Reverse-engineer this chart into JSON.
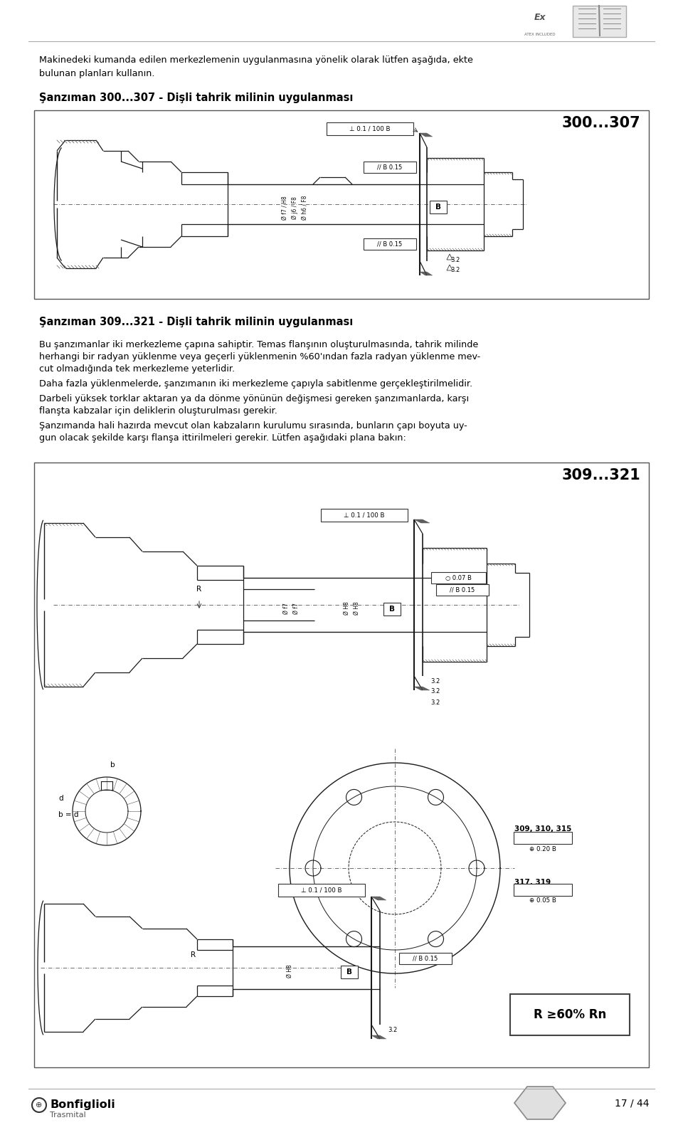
{
  "page_width": 9.6,
  "page_height": 15.81,
  "bg_color": "#ffffff",
  "intro_text_line1": "Makinedeki kumanda edilen merkezlemenin uygulanmasına yönelik olarak lütfen aşağıda, ekte",
  "intro_text_line2": "bulunan planları kullanın.",
  "section1_title": "Şanzıman 300...307 - Dişli tahrik milinin uygulanması",
  "box1_label": "300...307",
  "section2_title": "Şanzıman 309...321 - Dişli tahrik milinin uygulanması",
  "para1_line1": "Bu şanzımanlar iki merkezleme çapına sahiptir. Temas flanşının oluşturulmasında, tahrik milinde",
  "para1_line2": "herhangi bir radyan yüklenme veya geçerli yüklenmenin %60'ından fazla radyan yüklenme mev-",
  "para1_line3": "cut olmadığında tek merkezleme yeterlidir.",
  "para2": "Daha fazla yüklenmelerde, şanzımanın iki merkezleme çapıyla sabitlenme gerçekleştirilmelidir.",
  "para3_line1": "Darbeli yüksek torklar aktaran ya da dönme yönünün değişmesi gereken şanzımanlarda, karşı",
  "para3_line2": "flanşta kabzalar için deliklerin oluşturulması gerekir.",
  "para4_line1": "Şanzımanda hali hazırda mevcut olan kabzaların kurulumu sırasında, bunların çapı boyuta uy-",
  "para4_line2": "gun olacak şekilde karşı flanşa ittirilmeleri gerekir. Lütfen aşağıdaki plana bakın:",
  "box2_label": "309...321",
  "footer_logo": "Bonfiglioli",
  "footer_sub": "Trasmital",
  "footer_page": "17 / 44",
  "r_geq": "R ≥60% Rn",
  "label_309_315": "309, 310, 315",
  "tol_309": "⊕ 0.20 B",
  "label_317_319": "317, 319",
  "tol_317": "⊕ 0.05 B",
  "tol_perp": "⊥ 0.1 / 100 B",
  "tol_par": "// B 0.15",
  "tol_circ": "○ 0.07 B",
  "dim_f7h8": "Ø f7 / H8",
  "dim_j6f8": "Ø j6 / F8",
  "dim_h6f8": "Ø h6 / F8",
  "dim_f7": "Ø f7",
  "dim_h8": "Ø H8",
  "r_label": "R",
  "b_label": "B",
  "b_eq_d": "b = d",
  "b_small": "b",
  "d_small": "d",
  "rough": "3.2"
}
